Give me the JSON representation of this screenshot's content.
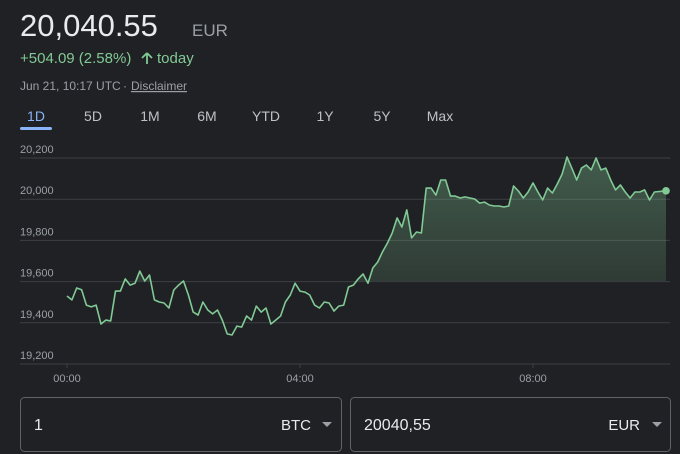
{
  "header": {
    "price": "20,040.55",
    "currency": "EUR",
    "change": "+504.09 (2.58%)",
    "period": "today",
    "timestamp": "Jun 21, 10:17 UTC",
    "separator": "·",
    "disclaimer": "Disclaimer"
  },
  "tabs": [
    "1D",
    "5D",
    "1M",
    "6M",
    "YTD",
    "1Y",
    "5Y",
    "Max"
  ],
  "active_tab": 0,
  "chart_data": {
    "type": "line",
    "color": "#81c995",
    "x": [
      0,
      5,
      10,
      15,
      20,
      25,
      30,
      35,
      40,
      45,
      50,
      55,
      60,
      65,
      70,
      75,
      80,
      85,
      90,
      95,
      100,
      105,
      110,
      115,
      120,
      125,
      130,
      135,
      140,
      145,
      150,
      155,
      160,
      165,
      170,
      175,
      180,
      185,
      190,
      195,
      200,
      205,
      210,
      215,
      220,
      225,
      230,
      235,
      240,
      245,
      250,
      255,
      260,
      265,
      270,
      275,
      280,
      285,
      290,
      295,
      300,
      305,
      310,
      315,
      320,
      325,
      330,
      335,
      340,
      345,
      350,
      355,
      360,
      365,
      370,
      375,
      380,
      385,
      390,
      395,
      400,
      405,
      410,
      415,
      420,
      425,
      430,
      435,
      440,
      445,
      450,
      455,
      460,
      465,
      470,
      475,
      480,
      485,
      490,
      495,
      500,
      505,
      510,
      515,
      520,
      525,
      530,
      535,
      540,
      545,
      550,
      555,
      560,
      565,
      570,
      575,
      580,
      585,
      590,
      595,
      600,
      605,
      617
    ],
    "values": [
      19530,
      19511,
      19569,
      19560,
      19486,
      19477,
      19486,
      19394,
      19413,
      19409,
      19554,
      19554,
      19613,
      19583,
      19592,
      19651,
      19603,
      19632,
      19511,
      19501,
      19496,
      19472,
      19559,
      19583,
      19603,
      19535,
      19452,
      19438,
      19501,
      19462,
      19443,
      19462,
      19413,
      19346,
      19341,
      19384,
      19379,
      19433,
      19413,
      19481,
      19452,
      19472,
      19394,
      19413,
      19433,
      19501,
      19535,
      19592,
      19554,
      19549,
      19535,
      19486,
      19472,
      19501,
      19496,
      19457,
      19481,
      19486,
      19574,
      19583,
      19613,
      19637,
      19592,
      19666,
      19695,
      19744,
      19787,
      19836,
      19909,
      19865,
      19948,
      19812,
      19841,
      19836,
      20054,
      20054,
      20020,
      20093,
      20093,
      20015,
      20015,
      20006,
      20011,
      20006,
      20001,
      19981,
      19986,
      19972,
      19967,
      19967,
      19962,
      19967,
      20064,
      20040,
      20006,
      20035,
      20079,
      20035,
      19996,
      20054,
      20030,
      20074,
      20122,
      20205,
      20151,
      20093,
      20151,
      20166,
      20142,
      20200,
      20142,
      20151,
      20093,
      20045,
      20069,
      20035,
      20006,
      20035,
      20035,
      20045,
      19996,
      20035,
      20040.55
    ],
    "xlim": [
      0,
      617
    ],
    "xticks": [
      {
        "value": 0,
        "label": "00:00"
      },
      {
        "value": 240,
        "label": "04:00"
      },
      {
        "value": 480,
        "label": "08:00"
      }
    ],
    "ylim": [
      19200,
      20200
    ],
    "yticks": [
      {
        "value": 19200,
        "label": "19,200"
      },
      {
        "value": 19400,
        "label": "19,400"
      },
      {
        "value": 19600,
        "label": "19,600"
      },
      {
        "value": 19800,
        "label": "19,800"
      },
      {
        "value": 20000,
        "label": "20,000"
      },
      {
        "value": 20200,
        "label": "20,200"
      }
    ],
    "grid": true
  },
  "converter": {
    "from_amount": "1",
    "from_unit": "BTC",
    "to_amount": "20040,55",
    "to_unit": "EUR"
  }
}
